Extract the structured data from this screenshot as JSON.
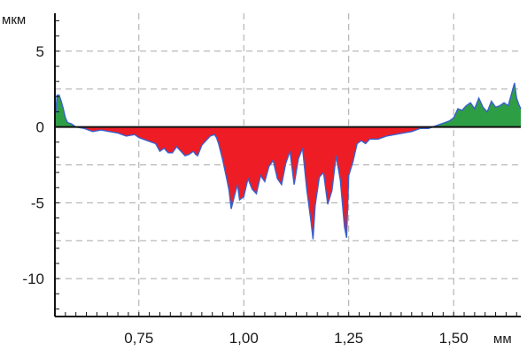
{
  "chart_data": {
    "type": "area",
    "title": "",
    "ylabel": "мкм",
    "xlabel": "мм",
    "xlim": [
      0.55,
      1.66
    ],
    "ylim": [
      -12.5,
      7.5
    ],
    "grid": true,
    "baseline": 0,
    "x_ticks": [
      {
        "value": 0.75,
        "label": "0,75"
      },
      {
        "value": 1.0,
        "label": "1,00"
      },
      {
        "value": 1.25,
        "label": "1,25"
      },
      {
        "value": 1.5,
        "label": "1,50"
      }
    ],
    "y_ticks": [
      {
        "value": 5,
        "label": "5"
      },
      {
        "value": 0,
        "label": "0"
      },
      {
        "value": -5,
        "label": "-5"
      },
      {
        "value": -10,
        "label": "-10"
      }
    ],
    "colors": {
      "positive_fill": "#2e9e45",
      "negative_fill": "#ee1c24",
      "profile_line": "#3a5fcd",
      "zero_line": "#111111",
      "grid": "#a8a8a8",
      "axis": "#111111"
    },
    "profile": {
      "x": [
        0.552,
        0.555,
        0.56,
        0.565,
        0.57,
        0.575,
        0.58,
        0.59,
        0.6,
        0.62,
        0.64,
        0.66,
        0.68,
        0.7,
        0.72,
        0.74,
        0.75,
        0.77,
        0.79,
        0.8,
        0.81,
        0.82,
        0.83,
        0.84,
        0.85,
        0.86,
        0.87,
        0.88,
        0.885,
        0.89,
        0.9,
        0.91,
        0.92,
        0.93,
        0.935,
        0.94,
        0.95,
        0.96,
        0.965,
        0.97,
        0.98,
        0.985,
        0.99,
        1.0,
        1.01,
        1.02,
        1.03,
        1.04,
        1.05,
        1.06,
        1.07,
        1.08,
        1.09,
        1.1,
        1.11,
        1.12,
        1.13,
        1.14,
        1.15,
        1.16,
        1.165,
        1.17,
        1.18,
        1.19,
        1.2,
        1.21,
        1.22,
        1.23,
        1.24,
        1.245,
        1.25,
        1.26,
        1.27,
        1.28,
        1.29,
        1.3,
        1.32,
        1.34,
        1.36,
        1.38,
        1.4,
        1.42,
        1.44,
        1.46,
        1.48,
        1.49,
        1.5,
        1.51,
        1.52,
        1.53,
        1.54,
        1.55,
        1.56,
        1.57,
        1.58,
        1.59,
        1.6,
        1.61,
        1.62,
        1.63,
        1.635,
        1.64,
        1.645,
        1.65,
        1.655,
        1.66
      ],
      "y": [
        0.9,
        2.1,
        2.1,
        1.7,
        1.2,
        0.6,
        0.3,
        0.2,
        0.0,
        -0.1,
        -0.3,
        -0.2,
        -0.3,
        -0.4,
        -0.6,
        -0.5,
        -0.7,
        -0.9,
        -1.1,
        -1.6,
        -1.4,
        -1.7,
        -1.7,
        -1.3,
        -1.6,
        -1.9,
        -1.8,
        -1.6,
        -1.8,
        -1.9,
        -1.2,
        -0.9,
        -0.6,
        -0.5,
        -0.7,
        -1.1,
        -2.2,
        -3.5,
        -4.2,
        -5.4,
        -4.3,
        -3.8,
        -4.8,
        -4.6,
        -3.4,
        -4.1,
        -4.4,
        -3.2,
        -3.6,
        -2.6,
        -2.2,
        -3.4,
        -3.8,
        -2.4,
        -1.6,
        -3.8,
        -2.1,
        -1.4,
        -4.1,
        -6.2,
        -7.4,
        -5.2,
        -3.3,
        -3.0,
        -5.1,
        -4.2,
        -1.9,
        -3.5,
        -6.6,
        -7.3,
        -3.2,
        -2.3,
        -1.1,
        -0.9,
        -1.1,
        -0.8,
        -0.8,
        -0.6,
        -0.5,
        -0.4,
        -0.3,
        -0.1,
        -0.1,
        0.1,
        0.3,
        0.4,
        0.6,
        1.2,
        1.1,
        1.4,
        1.6,
        1.2,
        1.9,
        1.3,
        1.0,
        1.7,
        1.3,
        1.4,
        1.6,
        1.4,
        1.9,
        2.4,
        2.9,
        1.9,
        1.5,
        1.2
      ]
    }
  }
}
